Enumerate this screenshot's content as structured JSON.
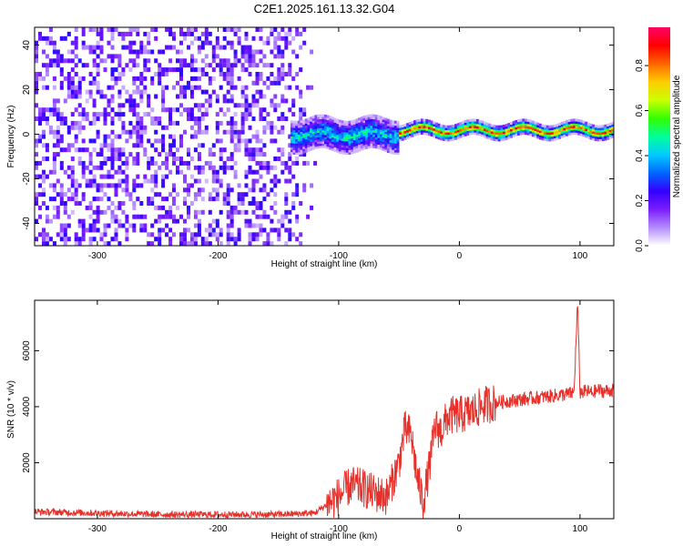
{
  "chart_data": [
    {
      "type": "heatmap",
      "title": "C2E1.2025.161.13.32.G04",
      "xlabel": "Height of straight line (km)",
      "ylabel": "Frequency (Hz)",
      "xlim": [
        -352,
        128
      ],
      "ylim": [
        -50,
        48
      ],
      "xticks": [
        -300,
        -200,
        -100,
        0,
        100
      ],
      "yticks": [
        -40,
        -20,
        0,
        20,
        40
      ],
      "colorbar": {
        "label": "Normalized spectral amplitude",
        "range": [
          0,
          0.97
        ],
        "ticks": [
          0.0,
          0.2,
          0.4,
          0.6,
          0.8
        ],
        "colormap": [
          "#ffffff",
          "#b48cff",
          "#7a1cff",
          "#3300ff",
          "#0066ff",
          "#00ccff",
          "#00ff99",
          "#33ff00",
          "#ccff00",
          "#ffcc00",
          "#ff6600",
          "#ff0000",
          "#ff0066"
        ]
      },
      "regions": [
        {
          "x_range": [
            -352,
            -120
          ],
          "f_range": [
            -50,
            48
          ],
          "amplitude": 0.05,
          "description": "broadband noise"
        },
        {
          "x_range": [
            -140,
            -50
          ],
          "f_center": 0,
          "f_halfwidth": 7,
          "amplitude": 0.45
        },
        {
          "x_range": [
            -50,
            128
          ],
          "f_center": 2,
          "f_halfwidth": 3,
          "amplitude": 0.85
        }
      ],
      "grid": false
    },
    {
      "type": "line",
      "xlabel": "Height of straight line (km)",
      "ylabel": "SNR (10 * v/v)",
      "xlim": [
        -352,
        128
      ],
      "ylim": [
        0,
        7800
      ],
      "xticks": [
        -300,
        -200,
        -100,
        0,
        100
      ],
      "yticks": [
        2000,
        4000,
        6000
      ],
      "series": [
        {
          "color": "#e8302a",
          "x": [
            -352,
            -300,
            -250,
            -200,
            -150,
            -120,
            -110,
            -100,
            -90,
            -80,
            -70,
            -60,
            -50,
            -45,
            -40,
            -35,
            -30,
            -25,
            -20,
            -15,
            -10,
            -5,
            0,
            10,
            20,
            30,
            40,
            50,
            60,
            70,
            80,
            90,
            95,
            98,
            100,
            105,
            110,
            115,
            120,
            128
          ],
          "y": [
            250,
            200,
            150,
            150,
            150,
            200,
            500,
            800,
            1200,
            1100,
            900,
            800,
            2000,
            3200,
            3000,
            1500,
            600,
            1800,
            3300,
            3100,
            3600,
            3700,
            3700,
            3800,
            4050,
            4150,
            4200,
            4250,
            4300,
            4350,
            4400,
            4450,
            4500,
            7700,
            4500,
            4550,
            4500,
            4600,
            4550,
            4600
          ]
        }
      ],
      "grid": false
    }
  ]
}
